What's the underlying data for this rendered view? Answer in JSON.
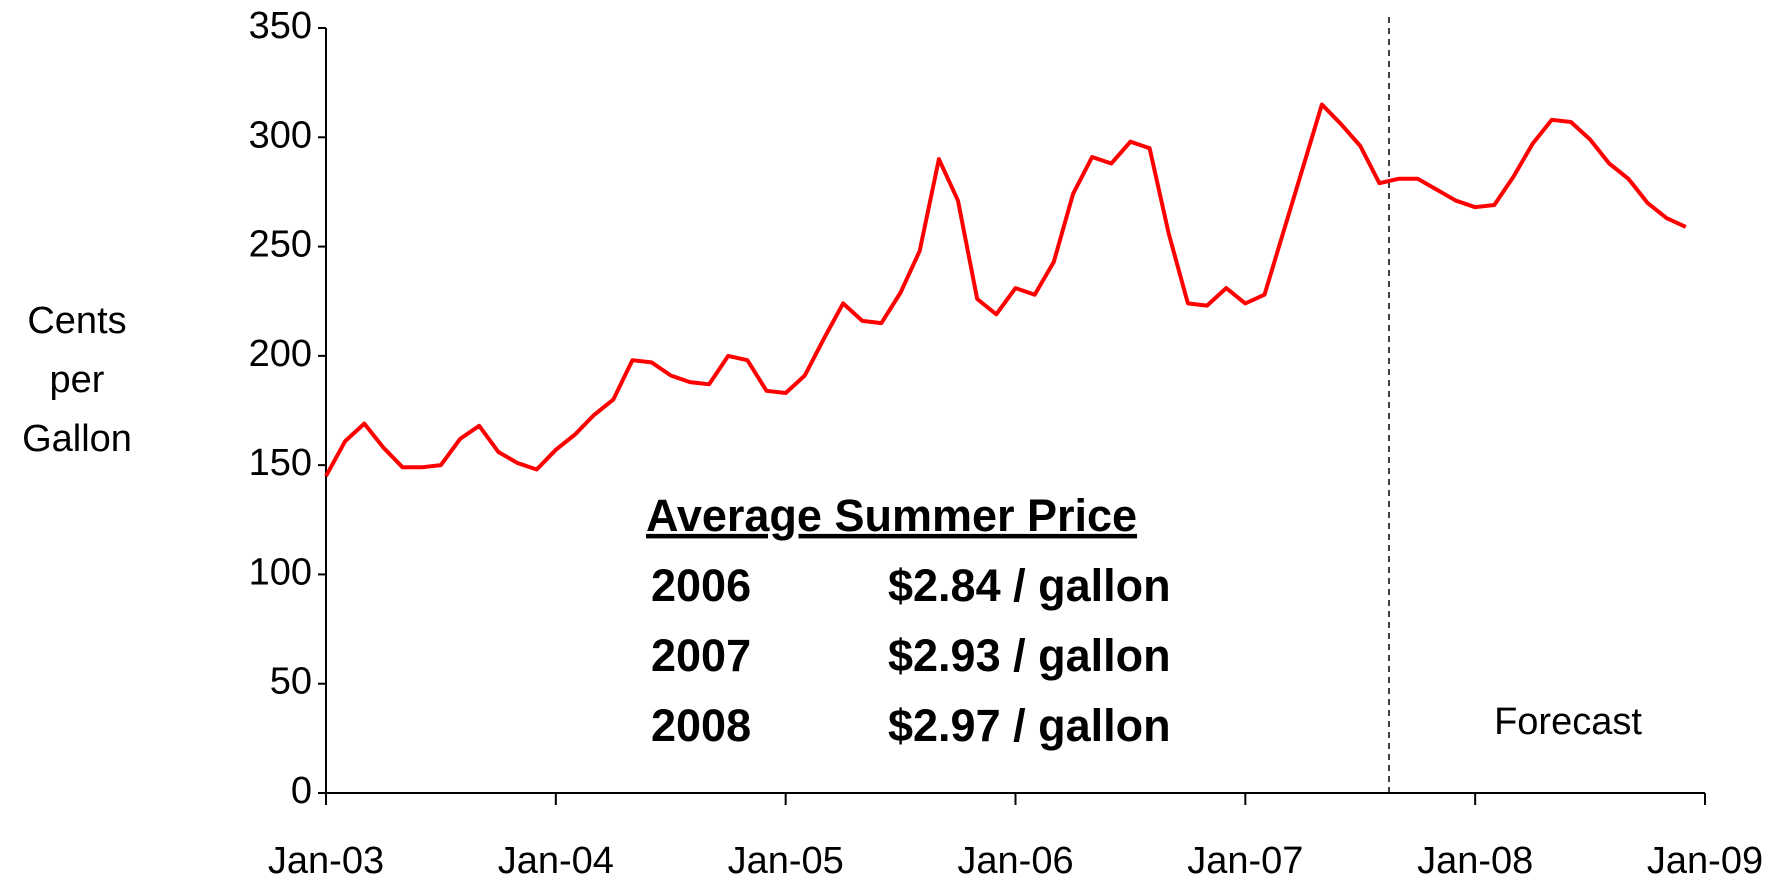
{
  "chart_data": {
    "type": "line",
    "y_label": [
      "Cents",
      "per",
      "Gallon"
    ],
    "categories": [
      "Jan-03",
      null,
      null,
      null,
      null,
      null,
      null,
      null,
      null,
      null,
      null,
      null,
      "Jan-04",
      null,
      null,
      null,
      null,
      null,
      null,
      null,
      null,
      null,
      null,
      null,
      "Jan-05",
      null,
      null,
      null,
      null,
      null,
      null,
      null,
      null,
      null,
      null,
      null,
      "Jan-06",
      null,
      null,
      null,
      null,
      null,
      null,
      null,
      null,
      null,
      null,
      null,
      "Jan-07",
      null,
      null,
      null,
      null,
      null,
      null,
      null,
      null,
      null,
      null,
      null,
      "Jan-08",
      null,
      null,
      null,
      null,
      null,
      null,
      null,
      null,
      null,
      null,
      null,
      "Jan-09"
    ],
    "series": [
      {
        "color": "#ff0000",
        "values": [
          145,
          161,
          169,
          158,
          149,
          149,
          150,
          162,
          168,
          156,
          151,
          148,
          157,
          164,
          173,
          180,
          198,
          197,
          191,
          188,
          187,
          200,
          198,
          184,
          183,
          191,
          208,
          224,
          216,
          215,
          229,
          248,
          290,
          271,
          226,
          219,
          231,
          228,
          243,
          274,
          291,
          288,
          298,
          295,
          256,
          224,
          223,
          231,
          224,
          228,
          257,
          286,
          315,
          306,
          296,
          279,
          281,
          281,
          276,
          271,
          268,
          269,
          282,
          297,
          308,
          307,
          299,
          288,
          281,
          270,
          263,
          259,
          null
        ]
      }
    ],
    "ylim": [
      0,
      350
    ],
    "yticks": [
      0,
      50,
      100,
      150,
      200,
      250,
      300,
      350
    ],
    "annotations": [
      "Forecast"
    ],
    "inset": {
      "title": "Average Summer Price",
      "rows": [
        [
          "2006",
          "$2.84 / gallon"
        ],
        [
          "2007",
          "$2.93 / gallon"
        ],
        [
          "2008",
          "$2.97 / gallon"
        ]
      ]
    }
  }
}
